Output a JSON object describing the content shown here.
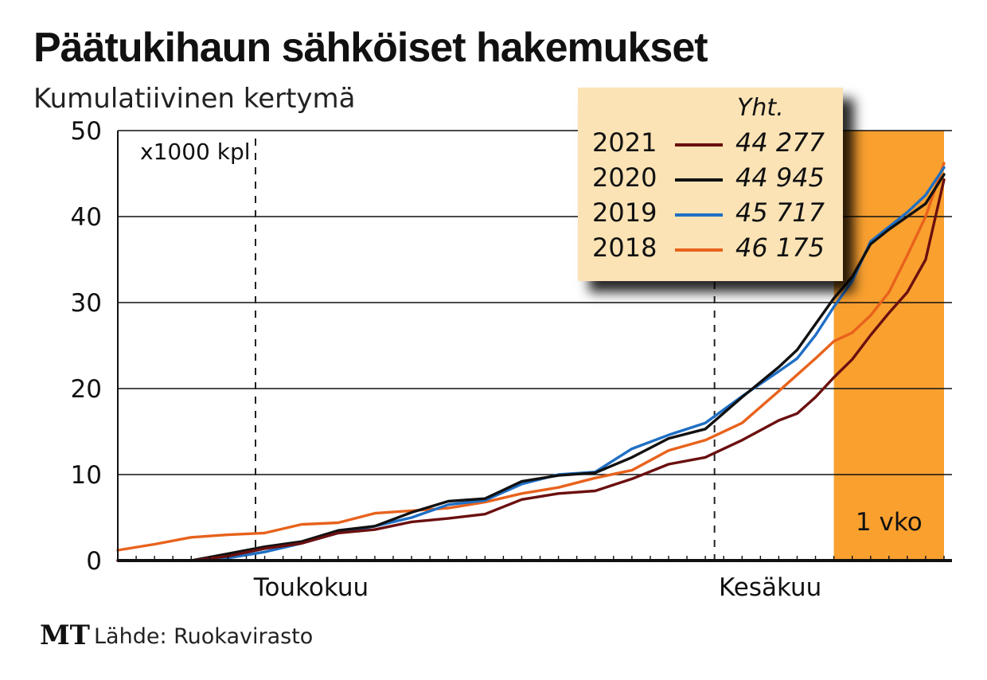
{
  "colors": {
    "2021": "#6b0f0f",
    "2020": "#111111",
    "2019": "#1f6fc4",
    "2018": "#e8621c",
    "highlight": "#f9a02f",
    "legend_bg": "#fbe3b5"
  },
  "chart_data": {
    "type": "line",
    "title": "Päätukihaun sähköiset hakemukset",
    "subtitle": "Kumulatiivinen kertymä",
    "ylabel": "x1000 kpl",
    "ylim": [
      0,
      50
    ],
    "yticks": [
      "0",
      "10",
      "20",
      "30",
      "40",
      "50"
    ],
    "xlim": [
      0,
      45
    ],
    "month_markers": [
      {
        "label": "Toukokuu",
        "x": 7.5
      },
      {
        "label": "Kesäkuu",
        "x": 32.5
      }
    ],
    "highlight": {
      "label": "1 vko",
      "x_start": 39,
      "x_end": 45
    },
    "legend_header": "Yht.",
    "series": [
      {
        "name": "2021",
        "total": "44 277",
        "color_key": "2021",
        "x": [
          0,
          2,
          4,
          6,
          8,
          10,
          12,
          14,
          16,
          18,
          20,
          22,
          24,
          26,
          28,
          30,
          32,
          34,
          36,
          37,
          38,
          39,
          40,
          41,
          42,
          43,
          44,
          45
        ],
        "y": [
          0,
          0,
          0,
          0.5,
          1.4,
          2.0,
          3.2,
          3.6,
          4.5,
          4.9,
          5.4,
          7.1,
          7.8,
          8.1,
          9.5,
          11.2,
          12.0,
          14.0,
          16.3,
          17.1,
          19.0,
          21.3,
          23.4,
          26.2,
          28.8,
          31.2,
          35.0,
          44.3
        ]
      },
      {
        "name": "2020",
        "total": "44 945",
        "color_key": "2020",
        "x": [
          0,
          2,
          4,
          6,
          8,
          10,
          12,
          14,
          16,
          18,
          20,
          22,
          24,
          26,
          28,
          30,
          32,
          34,
          36,
          37,
          38,
          39,
          40,
          41,
          42,
          43,
          44,
          45
        ],
        "y": [
          0,
          0,
          0,
          0.8,
          1.6,
          2.2,
          3.5,
          4.0,
          5.6,
          6.9,
          7.2,
          9.2,
          9.9,
          10.2,
          12.0,
          14.2,
          15.3,
          19.0,
          22.5,
          24.5,
          27.5,
          30.5,
          33.0,
          36.8,
          38.5,
          40.0,
          41.5,
          44.9
        ]
      },
      {
        "name": "2019",
        "total": "45 717",
        "color_key": "2019",
        "x": [
          0,
          2,
          4,
          6,
          8,
          10,
          12,
          14,
          16,
          18,
          20,
          22,
          24,
          26,
          28,
          30,
          32,
          34,
          36,
          37,
          38,
          39,
          40,
          41,
          42,
          43,
          44,
          45
        ],
        "y": [
          0,
          0,
          0,
          0.3,
          1.0,
          2.0,
          3.2,
          4.0,
          5.0,
          6.5,
          7.0,
          8.9,
          10.0,
          10.3,
          13.0,
          14.6,
          16.0,
          19.1,
          22.0,
          23.5,
          26.2,
          29.5,
          32.5,
          37.1,
          38.8,
          40.5,
          42.5,
          45.7
        ]
      },
      {
        "name": "2018",
        "total": "46 175",
        "color_key": "2018",
        "x": [
          0,
          2,
          4,
          6,
          8,
          10,
          12,
          14,
          16,
          18,
          20,
          22,
          24,
          26,
          28,
          30,
          32,
          34,
          36,
          37,
          38,
          39,
          40,
          41,
          42,
          43,
          44,
          45
        ],
        "y": [
          1.2,
          1.9,
          2.7,
          3.0,
          3.2,
          4.2,
          4.4,
          5.5,
          5.8,
          6.1,
          6.8,
          7.8,
          8.5,
          9.6,
          10.5,
          12.8,
          14.0,
          16.0,
          19.7,
          21.6,
          23.5,
          25.5,
          26.5,
          28.5,
          31.2,
          35.5,
          40.0,
          46.2
        ]
      }
    ]
  },
  "footer": {
    "logo": "MT",
    "source": "Lähde: Ruokavirasto"
  }
}
